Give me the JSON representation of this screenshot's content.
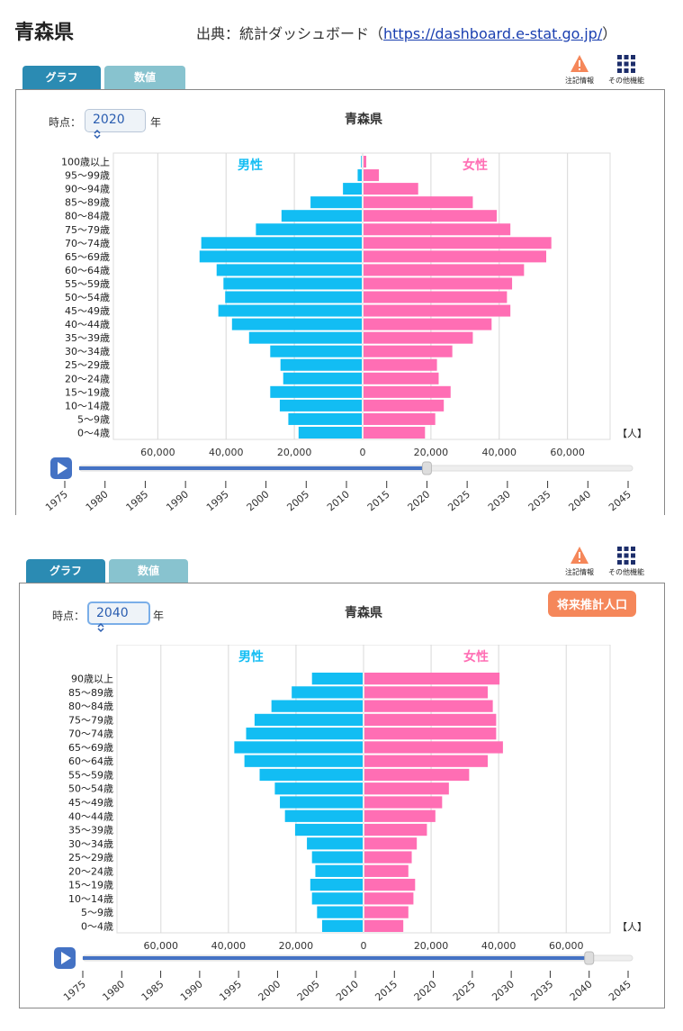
{
  "header": {
    "title": "青森県",
    "source_prefix": "出典：統計ダッシュボード（",
    "source_url": "https://dashboard.e-stat.go.jp/",
    "source_suffix": "）"
  },
  "tabs": {
    "graph": "グラフ",
    "values": "数値"
  },
  "tools": {
    "notes": "注記情報",
    "other": "その他機能"
  },
  "colors": {
    "male": "#12bdf3",
    "female": "#ff6eb4",
    "tab_active": "#2b8bb3",
    "tab_inactive": "#88c3cf",
    "slider": "#4472c4",
    "badge": "#f5875a"
  },
  "panels": [
    {
      "timepoint_label": "時点：",
      "year": "2020",
      "year_suffix": "年",
      "projection_badge": null,
      "chart_data": {
        "type": "bar",
        "title": "青森県",
        "unit_label": "【人】",
        "series": [
          {
            "name": "男性",
            "values": [
              18500,
              21500,
              24000,
              26800,
              23000,
              23800,
              26800,
              33000,
              38000,
              42000,
              40000,
              40500,
              42500,
              47500,
              47000,
              31000,
              23500,
              15000,
              5500,
              1200,
              200
            ]
          },
          {
            "name": "女性",
            "values": [
              18000,
              21000,
              23500,
              25500,
              22000,
              21500,
              26000,
              32000,
              37500,
              43000,
              42000,
              43500,
              47000,
              53500,
              55000,
              43000,
              39000,
              32000,
              16000,
              4500,
              800
            ]
          }
        ],
        "categories": [
          "0～4歳",
          "5～9歳",
          "10～14歳",
          "15～19歳",
          "20～24歳",
          "25～29歳",
          "30～34歳",
          "35～39歳",
          "40～44歳",
          "45～49歳",
          "50～54歳",
          "55～59歳",
          "60～64歳",
          "65～69歳",
          "70～74歳",
          "75～79歳",
          "80～84歳",
          "85～89歳",
          "90～94歳",
          "95～99歳",
          "100歳以上"
        ],
        "xlim": [
          -73000,
          73000
        ],
        "xticks": [
          "60,000",
          "40,000",
          "20,000",
          "0",
          "20,000",
          "40,000",
          "60,000"
        ],
        "grid": true
      },
      "slider": {
        "years": [
          "1975",
          "1980",
          "1985",
          "1990",
          "1995",
          "2000",
          "2005",
          "2010",
          "2015",
          "2020",
          "2025",
          "2030",
          "2035",
          "2040",
          "2045"
        ],
        "current": 2020
      }
    },
    {
      "timepoint_label": "時点：",
      "year": "2040",
      "year_suffix": "年",
      "projection_badge": "将来推計人口",
      "chart_data": {
        "type": "bar",
        "title": "青森県",
        "unit_label": "【人】",
        "series": [
          {
            "name": "男性",
            "values": [
              12000,
              13500,
              15000,
              15500,
              14000,
              15000,
              16500,
              20000,
              23000,
              24500,
              26000,
              30500,
              35000,
              38000,
              34500,
              32000,
              27000,
              21000,
              15000
            ]
          },
          {
            "name": "女性",
            "values": [
              11500,
              13000,
              14500,
              15000,
              13000,
              14000,
              15500,
              18500,
              21000,
              23000,
              25000,
              31000,
              36500,
              41000,
              39000,
              39000,
              38000,
              36500,
              40000
            ]
          }
        ],
        "categories": [
          "0～4歳",
          "5～9歳",
          "10～14歳",
          "15～19歳",
          "20～24歳",
          "25～29歳",
          "30～34歳",
          "35～39歳",
          "40～44歳",
          "45～49歳",
          "50～54歳",
          "55～59歳",
          "60～64歳",
          "65～69歳",
          "70～74歳",
          "75～79歳",
          "80～84歳",
          "85～89歳",
          "90歳以上"
        ],
        "xlim": [
          -73000,
          73000
        ],
        "xticks": [
          "60,000",
          "40,000",
          "20,000",
          "0",
          "20,000",
          "40,000",
          "60,000"
        ],
        "grid": true
      },
      "slider": {
        "years": [
          "1975",
          "1980",
          "1985",
          "1990",
          "1995",
          "2000",
          "2005",
          "2010",
          "2015",
          "2020",
          "2025",
          "2030",
          "2035",
          "2040",
          "2045"
        ],
        "current": 2040
      }
    }
  ]
}
